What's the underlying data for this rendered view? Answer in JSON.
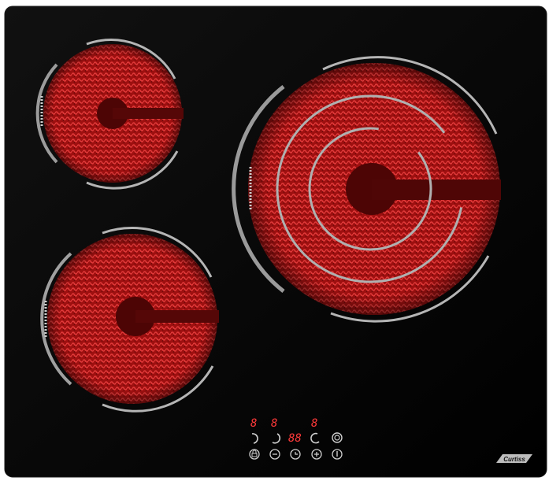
{
  "product": {
    "brand": "Curtiss"
  },
  "zones": [
    {
      "id": "rear-left",
      "rings": 1,
      "state": "glowing"
    },
    {
      "id": "front-left",
      "rings": 1,
      "state": "glowing"
    },
    {
      "id": "right-triple",
      "rings": 3,
      "state": "glowing"
    }
  ],
  "control_panel": {
    "zone_displays": [
      "8",
      "8",
      "8"
    ],
    "timer_display": "88",
    "buttons": [
      {
        "name": "lock",
        "icon": "lock-icon"
      },
      {
        "name": "minus",
        "icon": "minus-icon"
      },
      {
        "name": "timer",
        "icon": "timer-icon"
      },
      {
        "name": "plus",
        "icon": "plus-icon"
      },
      {
        "name": "power",
        "icon": "power-icon"
      }
    ],
    "zone_selectors": [
      "zone-select-left-icon",
      "zone-select-mid-icon",
      "zone-select-right-icon",
      "triple-ring-icon"
    ]
  },
  "colors": {
    "glass": "#030303",
    "element": "#c21515",
    "element_dark": "#5a0606",
    "ring": "#a8a8a8",
    "display": "#ff3a3a",
    "touch_icon": "#d0d0d0"
  }
}
